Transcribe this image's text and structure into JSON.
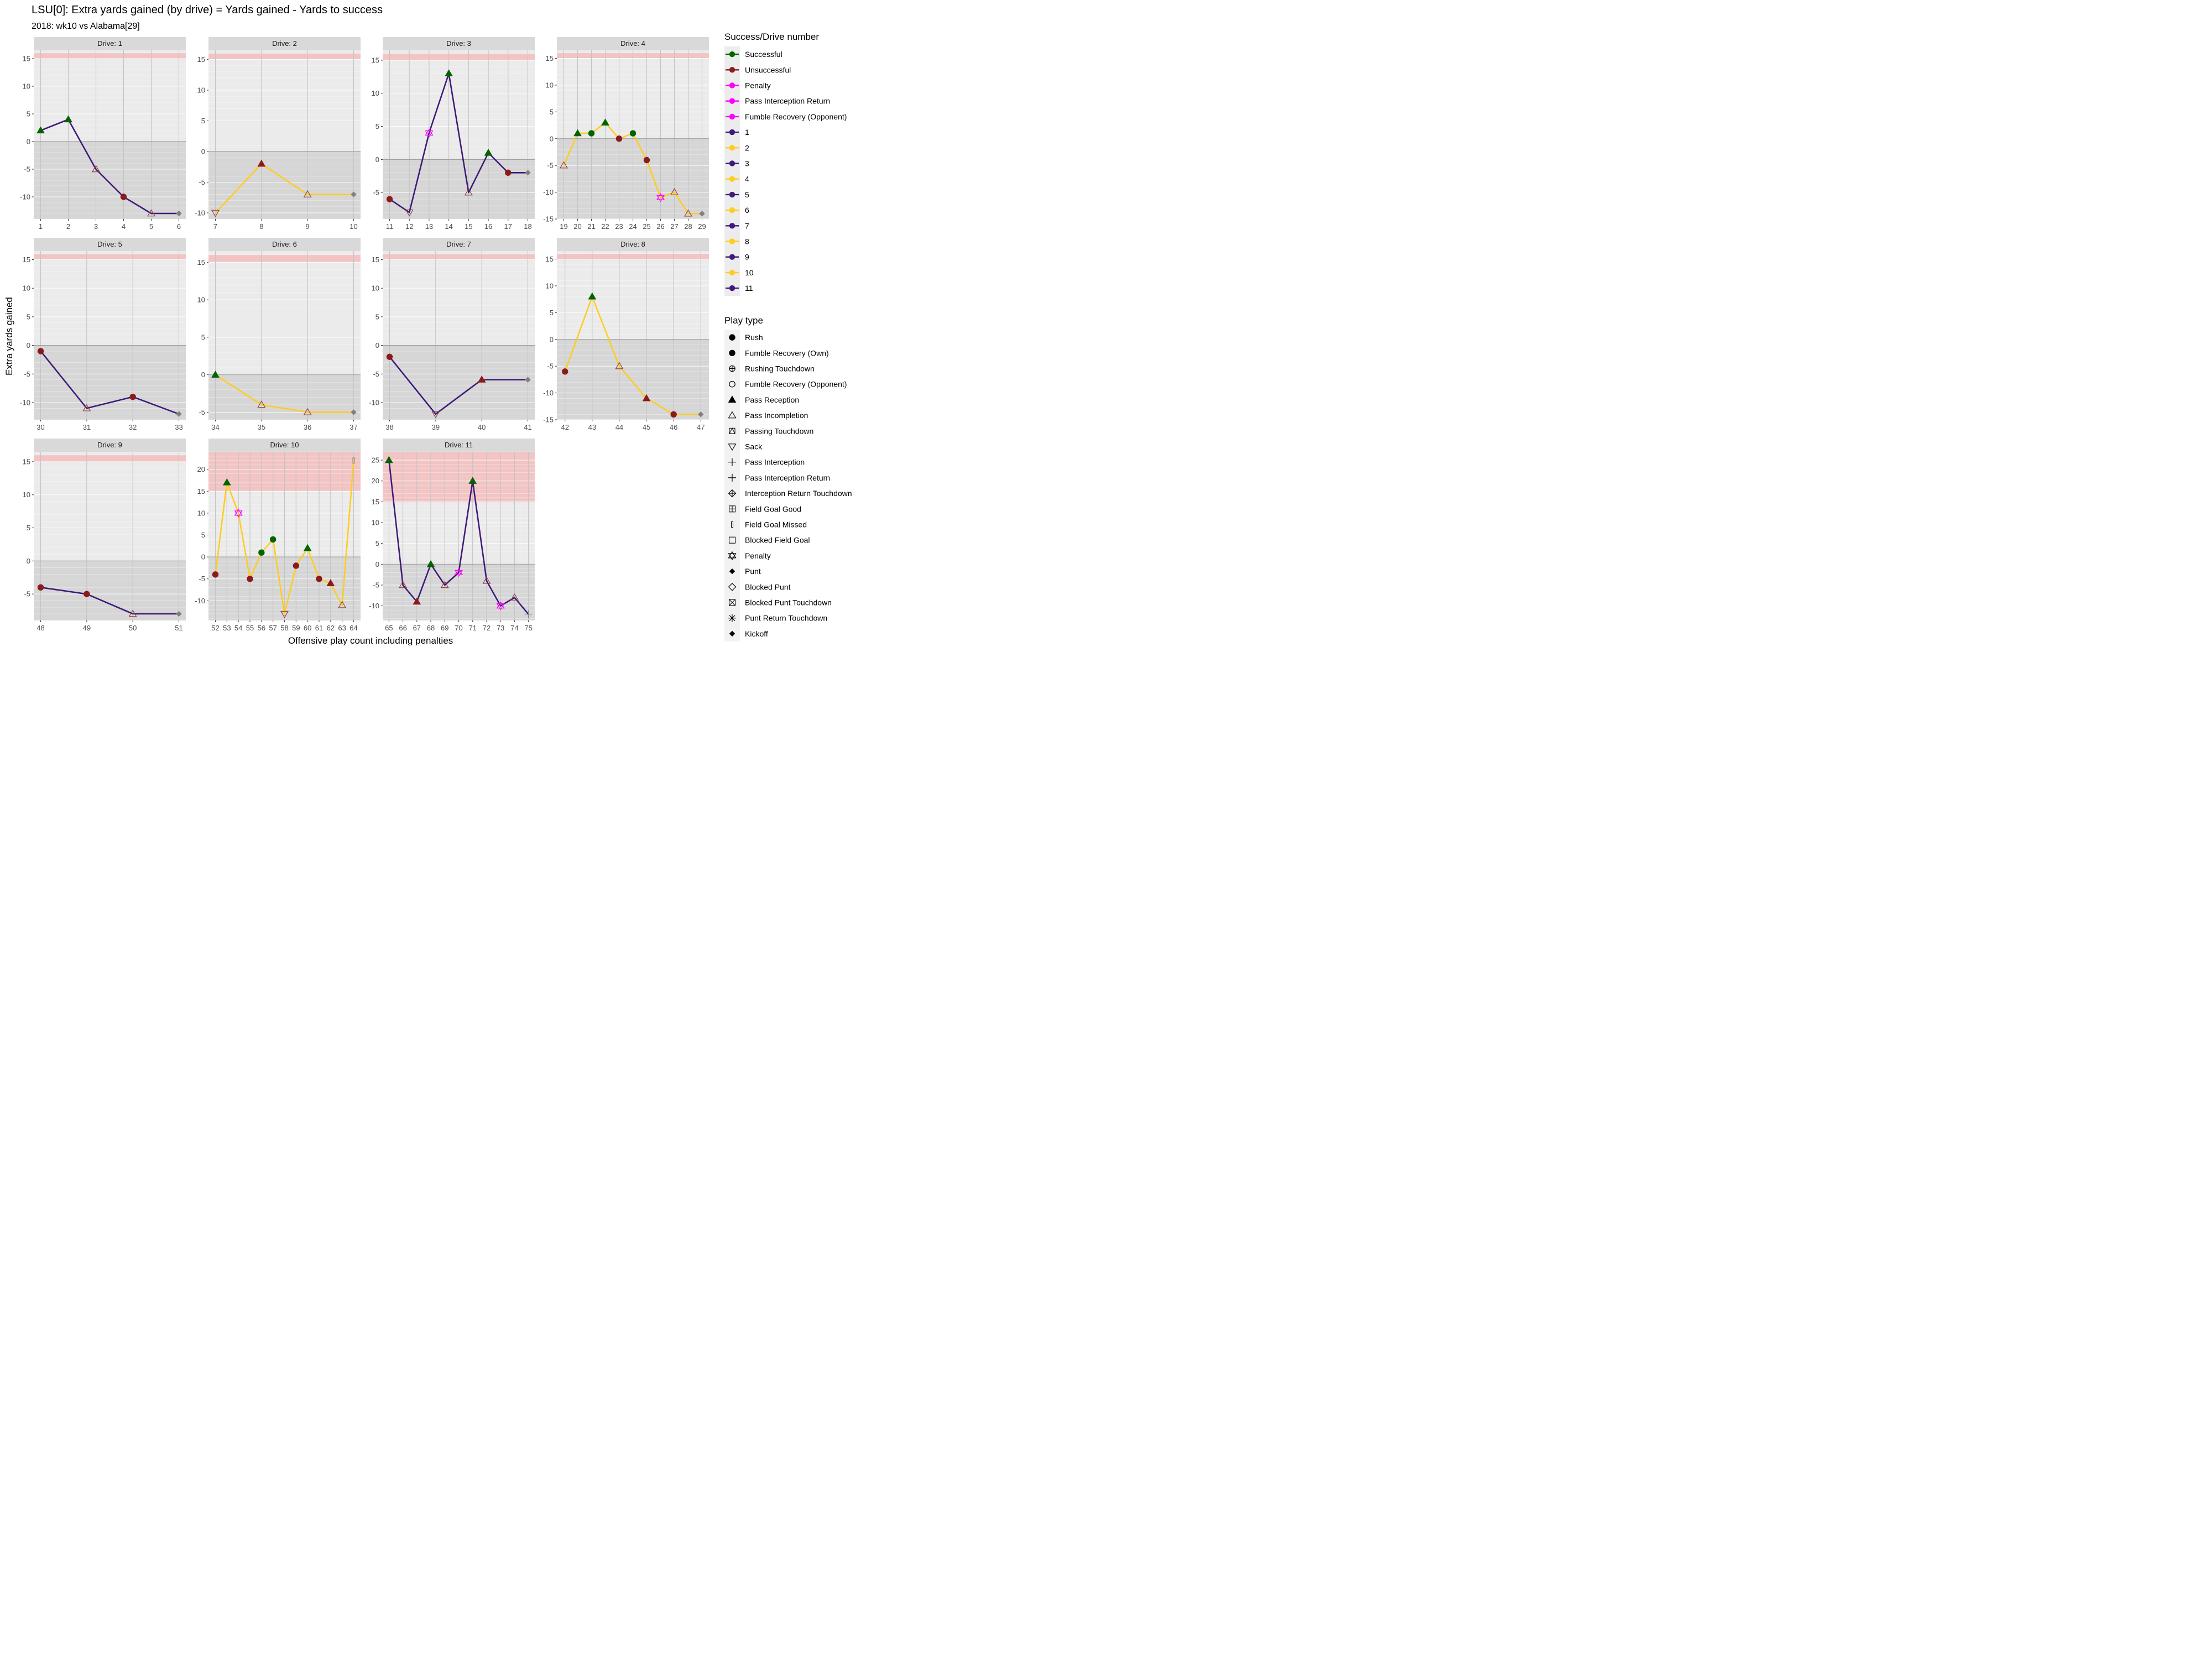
{
  "title": "LSU[0]: Extra yards gained (by drive) = Yards gained - Yards to success",
  "subtitle": "2018: wk10 vs Alabama[29]",
  "xlabel": "Offensive play count including penalties",
  "ylabel": "Extra yards gained",
  "colors": {
    "successful": "#006400",
    "unsuccessful": "#8B1A1A",
    "penalty": "#FF00FF",
    "drive_odd": "#3F1A7A",
    "drive_even": "#FFCC22",
    "panel_bg": "#EBEBEB",
    "negative_bg": "#D6D6D6",
    "success_band": "#F2C4C4",
    "strip_bg": "#D9D9D9",
    "terminal_point": "#808080"
  },
  "legend": {
    "success_title": "Success/Drive number",
    "success_items": [
      {
        "label": "Successful",
        "color": "#006400"
      },
      {
        "label": "Unsuccessful",
        "color": "#8B1A1A"
      },
      {
        "label": "Penalty",
        "color": "#FF00FF"
      },
      {
        "label": "Pass Interception Return",
        "color": "#FF00FF"
      },
      {
        "label": "Fumble Recovery (Opponent)",
        "color": "#FF00FF"
      },
      {
        "label": "1",
        "color": "#3F1A7A"
      },
      {
        "label": "2",
        "color": "#FFCC22"
      },
      {
        "label": "3",
        "color": "#3F1A7A"
      },
      {
        "label": "4",
        "color": "#FFCC22"
      },
      {
        "label": "5",
        "color": "#3F1A7A"
      },
      {
        "label": "6",
        "color": "#FFCC22"
      },
      {
        "label": "7",
        "color": "#3F1A7A"
      },
      {
        "label": "8",
        "color": "#FFCC22"
      },
      {
        "label": "9",
        "color": "#3F1A7A"
      },
      {
        "label": "10",
        "color": "#FFCC22"
      },
      {
        "label": "11",
        "color": "#3F1A7A"
      }
    ],
    "play_title": "Play type",
    "play_items": [
      {
        "label": "Rush",
        "shape": "circle"
      },
      {
        "label": "Fumble Recovery (Own)",
        "shape": "circle"
      },
      {
        "label": "Rushing Touchdown",
        "shape": "circle-plus"
      },
      {
        "label": "Fumble Recovery (Opponent)",
        "shape": "circle-open"
      },
      {
        "label": "Pass Reception",
        "shape": "triangle"
      },
      {
        "label": "Pass Incompletion",
        "shape": "triangle-open"
      },
      {
        "label": "Passing Touchdown",
        "shape": "triangle-square"
      },
      {
        "label": "Sack",
        "shape": "triangle-down-open"
      },
      {
        "label": "Pass Interception",
        "shape": "plus"
      },
      {
        "label": "Pass Interception Return",
        "shape": "plus"
      },
      {
        "label": "Interception Return Touchdown",
        "shape": "diamond-plus"
      },
      {
        "label": "Field Goal Good",
        "shape": "square-plus"
      },
      {
        "label": "Field Goal Missed",
        "shape": "bar"
      },
      {
        "label": "Blocked Field Goal",
        "shape": "square-open"
      },
      {
        "label": "Penalty",
        "shape": "star-of-david"
      },
      {
        "label": "Punt",
        "shape": "diamond"
      },
      {
        "label": "Blocked Punt",
        "shape": "diamond-open"
      },
      {
        "label": "Blocked Punt Touchdown",
        "shape": "square-x"
      },
      {
        "label": "Punt Return Touchdown",
        "shape": "asterisk"
      },
      {
        "label": "Kickoff",
        "shape": "diamond"
      }
    ]
  },
  "chart_data": {
    "type": "line",
    "facet_by": "drive",
    "y_reference_line": 0,
    "panels": [
      {
        "strip": "Drive: 1",
        "drive": 1,
        "xlim": [
          0.75,
          6.25
        ],
        "ylim": [
          -14,
          16.5
        ],
        "yticks": [
          -10,
          -5,
          0,
          5,
          10,
          15
        ],
        "xticks": [
          1,
          2,
          3,
          4,
          5,
          6
        ],
        "band": [
          15,
          16
        ],
        "points": [
          {
            "x": 1,
            "y": 2,
            "shape": "triangle",
            "status": "Successful"
          },
          {
            "x": 2,
            "y": 4,
            "shape": "triangle",
            "status": "Successful"
          },
          {
            "x": 3,
            "y": -5,
            "shape": "triangle-open",
            "status": "Unsuccessful"
          },
          {
            "x": 4,
            "y": -10,
            "shape": "circle",
            "status": "Unsuccessful"
          },
          {
            "x": 5,
            "y": -13,
            "shape": "triangle-open",
            "status": "Unsuccessful"
          },
          {
            "x": 6,
            "y": -13,
            "shape": "diamond",
            "status": "Punt"
          }
        ]
      },
      {
        "strip": "Drive: 2",
        "drive": 2,
        "xlim": [
          6.85,
          10.15
        ],
        "ylim": [
          -11,
          16.5
        ],
        "yticks": [
          -10,
          -5,
          0,
          5,
          10,
          15
        ],
        "xticks": [
          7,
          8,
          9,
          10
        ],
        "band": [
          15,
          16
        ],
        "points": [
          {
            "x": 7,
            "y": -10,
            "shape": "triangle-down-open",
            "status": "Unsuccessful"
          },
          {
            "x": 8,
            "y": -2,
            "shape": "triangle",
            "status": "Unsuccessful"
          },
          {
            "x": 9,
            "y": -7,
            "shape": "triangle-open",
            "status": "Unsuccessful"
          },
          {
            "x": 10,
            "y": -7,
            "shape": "diamond",
            "status": "Punt"
          }
        ]
      },
      {
        "strip": "Drive: 3",
        "drive": 3,
        "xlim": [
          10.65,
          18.35
        ],
        "ylim": [
          -9,
          16.5
        ],
        "yticks": [
          -5,
          0,
          5,
          10,
          15
        ],
        "xticks": [
          11,
          12,
          13,
          14,
          15,
          16,
          17,
          18
        ],
        "band": [
          15,
          16
        ],
        "points": [
          {
            "x": 11,
            "y": -6,
            "shape": "circle",
            "status": "Unsuccessful"
          },
          {
            "x": 12,
            "y": -8,
            "shape": "triangle-down-open",
            "status": "Unsuccessful"
          },
          {
            "x": 13,
            "y": 4,
            "shape": "star-of-david",
            "status": "Penalty"
          },
          {
            "x": 14,
            "y": 13,
            "shape": "triangle",
            "status": "Successful"
          },
          {
            "x": 15,
            "y": -5,
            "shape": "triangle-open",
            "status": "Unsuccessful"
          },
          {
            "x": 16,
            "y": 1,
            "shape": "triangle",
            "status": "Successful"
          },
          {
            "x": 17,
            "y": -2,
            "shape": "circle",
            "status": "Unsuccessful"
          },
          {
            "x": 18,
            "y": -2,
            "shape": "diamond",
            "status": "Punt"
          }
        ]
      },
      {
        "strip": "Drive: 4",
        "drive": 4,
        "xlim": [
          18.5,
          29.5
        ],
        "ylim": [
          -15,
          16.5
        ],
        "yticks": [
          -15,
          -10,
          -5,
          0,
          5,
          10,
          15
        ],
        "xticks": [
          19,
          20,
          21,
          22,
          23,
          24,
          25,
          26,
          27,
          28,
          29
        ],
        "band": [
          15,
          16
        ],
        "points": [
          {
            "x": 19,
            "y": -5,
            "shape": "triangle-open",
            "status": "Unsuccessful"
          },
          {
            "x": 20,
            "y": 1,
            "shape": "triangle",
            "status": "Successful"
          },
          {
            "x": 21,
            "y": 1,
            "shape": "circle",
            "status": "Successful"
          },
          {
            "x": 22,
            "y": 3,
            "shape": "triangle",
            "status": "Successful"
          },
          {
            "x": 23,
            "y": 0,
            "shape": "circle",
            "status": "Unsuccessful"
          },
          {
            "x": 24,
            "y": 1,
            "shape": "circle",
            "status": "Successful"
          },
          {
            "x": 25,
            "y": -4,
            "shape": "circle",
            "status": "Unsuccessful"
          },
          {
            "x": 26,
            "y": -11,
            "shape": "star-of-david",
            "status": "Penalty"
          },
          {
            "x": 27,
            "y": -10,
            "shape": "triangle-open",
            "status": "Unsuccessful"
          },
          {
            "x": 28,
            "y": -14,
            "shape": "triangle-open",
            "status": "Unsuccessful"
          },
          {
            "x": 29,
            "y": -14,
            "shape": "diamond",
            "status": "Punt"
          }
        ]
      },
      {
        "strip": "Drive: 5",
        "drive": 5,
        "xlim": [
          29.85,
          33.15
        ],
        "ylim": [
          -13,
          16.5
        ],
        "yticks": [
          -10,
          -5,
          0,
          5,
          10,
          15
        ],
        "xticks": [
          30,
          31,
          32,
          33
        ],
        "band": [
          15,
          16
        ],
        "points": [
          {
            "x": 30,
            "y": -1,
            "shape": "circle",
            "status": "Unsuccessful"
          },
          {
            "x": 31,
            "y": -11,
            "shape": "triangle-open",
            "status": "Unsuccessful"
          },
          {
            "x": 32,
            "y": -9,
            "shape": "circle",
            "status": "Unsuccessful"
          },
          {
            "x": 33,
            "y": -12,
            "shape": "diamond",
            "status": "Punt"
          }
        ]
      },
      {
        "strip": "Drive: 6",
        "drive": 6,
        "xlim": [
          33.85,
          37.15
        ],
        "ylim": [
          -6,
          16.5
        ],
        "yticks": [
          -5,
          0,
          5,
          10,
          15
        ],
        "xticks": [
          34,
          35,
          36,
          37
        ],
        "band": [
          15,
          16
        ],
        "points": [
          {
            "x": 34,
            "y": 0,
            "shape": "triangle",
            "status": "Successful"
          },
          {
            "x": 35,
            "y": -4,
            "shape": "triangle-open",
            "status": "Unsuccessful"
          },
          {
            "x": 36,
            "y": -5,
            "shape": "triangle-open",
            "status": "Unsuccessful"
          },
          {
            "x": 37,
            "y": -5,
            "shape": "diamond",
            "status": "Punt"
          }
        ]
      },
      {
        "strip": "Drive: 7",
        "drive": 7,
        "xlim": [
          37.85,
          41.15
        ],
        "ylim": [
          -13,
          16.5
        ],
        "yticks": [
          -10,
          -5,
          0,
          5,
          10,
          15
        ],
        "xticks": [
          38,
          39,
          40,
          41
        ],
        "band": [
          15,
          16
        ],
        "points": [
          {
            "x": 38,
            "y": -2,
            "shape": "circle",
            "status": "Unsuccessful"
          },
          {
            "x": 39,
            "y": -12,
            "shape": "triangle-down-open",
            "status": "Unsuccessful"
          },
          {
            "x": 40,
            "y": -6,
            "shape": "triangle",
            "status": "Unsuccessful"
          },
          {
            "x": 41,
            "y": -6,
            "shape": "diamond",
            "status": "Punt"
          }
        ]
      },
      {
        "strip": "Drive: 8",
        "drive": 8,
        "xlim": [
          41.7,
          47.3
        ],
        "ylim": [
          -15,
          16.5
        ],
        "yticks": [
          -15,
          -10,
          -5,
          0,
          5,
          10,
          15
        ],
        "xticks": [
          42,
          43,
          44,
          45,
          46,
          47
        ],
        "band": [
          15,
          16
        ],
        "points": [
          {
            "x": 42,
            "y": -6,
            "shape": "circle",
            "status": "Unsuccessful"
          },
          {
            "x": 43,
            "y": 8,
            "shape": "triangle",
            "status": "Successful"
          },
          {
            "x": 44,
            "y": -5,
            "shape": "triangle-open",
            "status": "Unsuccessful"
          },
          {
            "x": 45,
            "y": -11,
            "shape": "triangle",
            "status": "Unsuccessful"
          },
          {
            "x": 46,
            "y": -14,
            "shape": "circle",
            "status": "Unsuccessful"
          },
          {
            "x": 47,
            "y": -14,
            "shape": "diamond",
            "status": "Punt"
          }
        ]
      },
      {
        "strip": "Drive: 9",
        "drive": 9,
        "xlim": [
          47.85,
          51.15
        ],
        "ylim": [
          -9,
          16.5
        ],
        "yticks": [
          -5,
          0,
          5,
          10,
          15
        ],
        "xticks": [
          48,
          49,
          50,
          51
        ],
        "band": [
          15,
          16
        ],
        "points": [
          {
            "x": 48,
            "y": -4,
            "shape": "circle",
            "status": "Unsuccessful"
          },
          {
            "x": 49,
            "y": -5,
            "shape": "circle",
            "status": "Unsuccessful"
          },
          {
            "x": 50,
            "y": -8,
            "shape": "triangle-open",
            "status": "Unsuccessful"
          },
          {
            "x": 51,
            "y": -8,
            "shape": "diamond",
            "status": "Punt"
          }
        ]
      },
      {
        "strip": "Drive: 10",
        "drive": 10,
        "xlim": [
          51.4,
          64.6
        ],
        "ylim": [
          -14.5,
          24
        ],
        "yticks": [
          -10,
          -5,
          0,
          5,
          10,
          15,
          20
        ],
        "xticks": [
          52,
          53,
          54,
          55,
          56,
          57,
          58,
          59,
          60,
          61,
          62,
          63,
          64
        ],
        "band": [
          15,
          24
        ],
        "points": [
          {
            "x": 52,
            "y": -4,
            "shape": "circle",
            "status": "Unsuccessful"
          },
          {
            "x": 53,
            "y": 17,
            "shape": "triangle",
            "status": "Successful"
          },
          {
            "x": 54,
            "y": 10,
            "shape": "star-of-david",
            "status": "Penalty"
          },
          {
            "x": 55,
            "y": -5,
            "shape": "circle",
            "status": "Unsuccessful"
          },
          {
            "x": 56,
            "y": 1,
            "shape": "circle",
            "status": "Successful"
          },
          {
            "x": 57,
            "y": 4,
            "shape": "circle",
            "status": "Successful"
          },
          {
            "x": 58,
            "y": -13,
            "shape": "triangle-down-open",
            "status": "Unsuccessful"
          },
          {
            "x": 59,
            "y": -2,
            "shape": "circle",
            "status": "Unsuccessful"
          },
          {
            "x": 60,
            "y": 2,
            "shape": "triangle",
            "status": "Successful"
          },
          {
            "x": 61,
            "y": -5,
            "shape": "circle",
            "status": "Unsuccessful"
          },
          {
            "x": 62,
            "y": -6,
            "shape": "triangle",
            "status": "Unsuccessful"
          },
          {
            "x": 63,
            "y": -11,
            "shape": "triangle-open",
            "status": "Unsuccessful"
          },
          {
            "x": 64,
            "y": 22,
            "shape": "bar",
            "status": "Field Goal Missed"
          }
        ]
      },
      {
        "strip": "Drive: 11",
        "drive": 11,
        "xlim": [
          64.55,
          75.45
        ],
        "ylim": [
          -13.5,
          27
        ],
        "yticks": [
          -10,
          -5,
          0,
          5,
          10,
          15,
          20,
          25
        ],
        "xticks": [
          65,
          66,
          67,
          68,
          69,
          70,
          71,
          72,
          73,
          74,
          75
        ],
        "band": [
          15,
          27
        ],
        "points": [
          {
            "x": 65,
            "y": 25,
            "shape": "triangle",
            "status": "Successful"
          },
          {
            "x": 66,
            "y": -5,
            "shape": "triangle-open",
            "status": "Unsuccessful"
          },
          {
            "x": 67,
            "y": -9,
            "shape": "triangle",
            "status": "Unsuccessful"
          },
          {
            "x": 68,
            "y": 0,
            "shape": "triangle",
            "status": "Successful"
          },
          {
            "x": 69,
            "y": -5,
            "shape": "triangle-open",
            "status": "Unsuccessful"
          },
          {
            "x": 70,
            "y": -2,
            "shape": "star-of-david",
            "status": "Penalty"
          },
          {
            "x": 71,
            "y": 20,
            "shape": "triangle",
            "status": "Successful"
          },
          {
            "x": 72,
            "y": -4,
            "shape": "triangle-open",
            "status": "Unsuccessful"
          },
          {
            "x": 73,
            "y": -10,
            "shape": "star-of-david",
            "status": "Penalty"
          },
          {
            "x": 74,
            "y": -8,
            "shape": "triangle-open",
            "status": "Unsuccessful"
          },
          {
            "x": 75,
            "y": -12,
            "shape": "plus",
            "status": "Pass Interception"
          }
        ]
      }
    ]
  }
}
